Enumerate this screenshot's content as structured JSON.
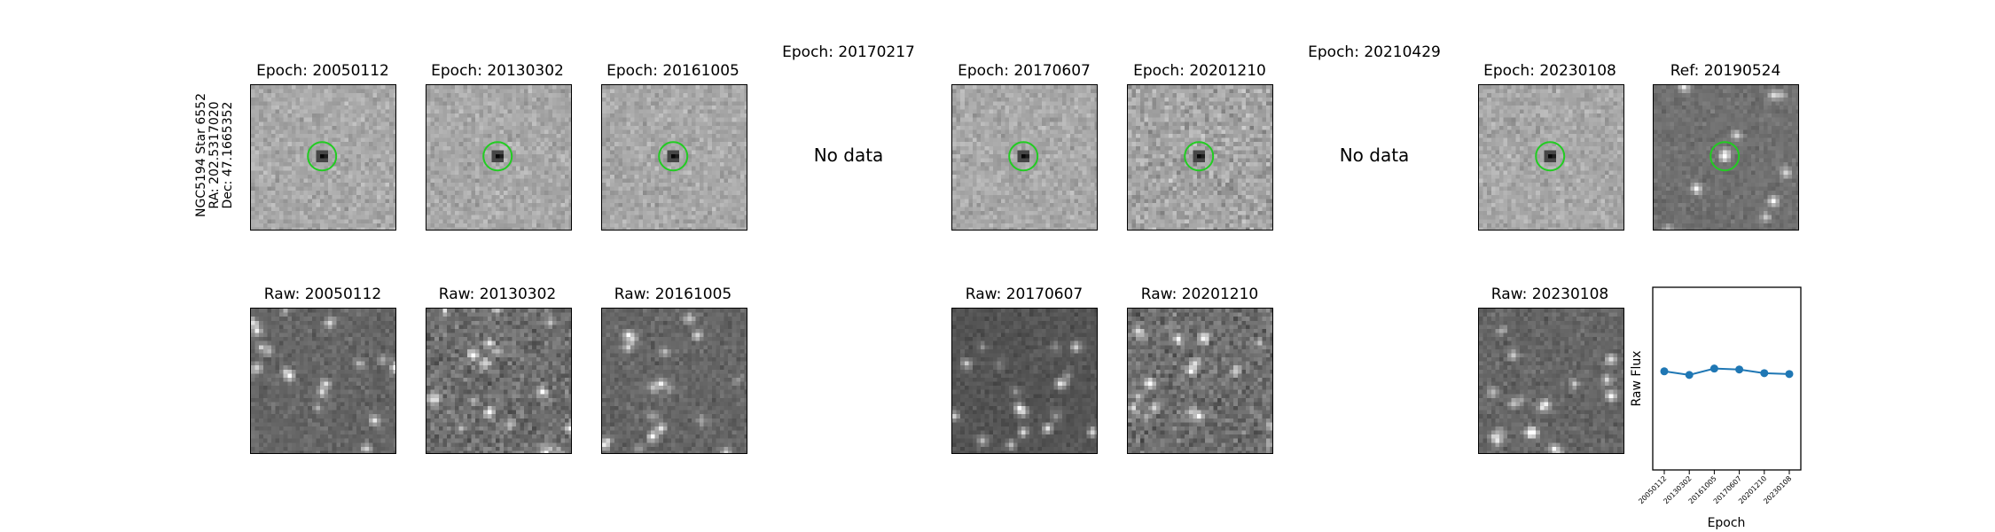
{
  "star_label": {
    "name": "NGC5194 Star 6552",
    "ra": "RA: 202.5317020",
    "dec": "Dec: 47.1665352"
  },
  "top_row": [
    {
      "title": "Epoch: 20050112",
      "has_data": true
    },
    {
      "title": "Epoch: 20130302",
      "has_data": true
    },
    {
      "title": "Epoch: 20161005",
      "has_data": true
    },
    {
      "title": "Epoch: 20170217",
      "has_data": false,
      "no_data_text": "No data"
    },
    {
      "title": "Epoch: 20170607",
      "has_data": true
    },
    {
      "title": "Epoch: 20201210",
      "has_data": true
    },
    {
      "title": "Epoch: 20210429",
      "has_data": false,
      "no_data_text": "No data"
    },
    {
      "title": "Epoch: 20230108",
      "has_data": true
    },
    {
      "title": "Ref: 20190524",
      "has_data": true
    }
  ],
  "bottom_row": [
    {
      "title": "Raw: 20050112"
    },
    {
      "title": "Raw: 20130302"
    },
    {
      "title": "Raw: 20161005"
    },
    {
      "title": "Raw: 20170607"
    },
    {
      "title": "Raw: 20201210"
    },
    {
      "title": "Raw: 20230108"
    }
  ],
  "colors": {
    "circle": "#22cc22",
    "series": "#1f77b4"
  },
  "chart_data": {
    "type": "line",
    "x": [
      "20050112",
      "20130302",
      "20161005",
      "20170607",
      "20201210",
      "20230108"
    ],
    "y": [
      0.54,
      0.52,
      0.555,
      0.55,
      0.53,
      0.525
    ],
    "ylim": [
      0,
      1
    ],
    "xlabel": "Epoch",
    "ylabel": "Raw Flux",
    "grid": false
  }
}
